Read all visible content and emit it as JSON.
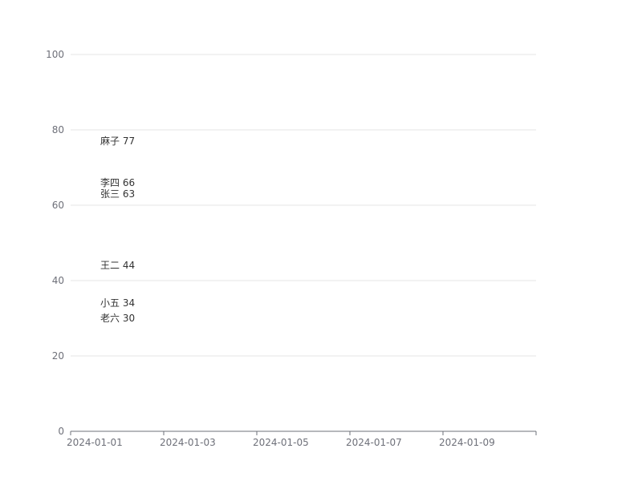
{
  "chart_data": {
    "type": "line",
    "title": "",
    "xlabel": "",
    "ylabel": "",
    "x_type": "date",
    "xlim": [
      "2024-01-01",
      "2024-01-11"
    ],
    "ylim": [
      0,
      100
    ],
    "x_ticks": [
      "2024-01-01",
      "2024-01-03",
      "2024-01-05",
      "2024-01-07",
      "2024-01-09"
    ],
    "y_ticks": [
      0,
      20,
      40,
      60,
      80,
      100
    ],
    "grid": true,
    "legend": "none",
    "series": [
      {
        "name": "麻子",
        "points": [
          {
            "x": "2024-01-01",
            "y": 77
          }
        ],
        "label": "麻子 77"
      },
      {
        "name": "李四",
        "points": [
          {
            "x": "2024-01-01",
            "y": 66
          }
        ],
        "label": "李四 66"
      },
      {
        "name": "张三",
        "points": [
          {
            "x": "2024-01-01",
            "y": 63
          }
        ],
        "label": "张三 63"
      },
      {
        "name": "王二",
        "points": [
          {
            "x": "2024-01-01",
            "y": 44
          }
        ],
        "label": "王二 44"
      },
      {
        "name": "小五",
        "points": [
          {
            "x": "2024-01-01",
            "y": 34
          }
        ],
        "label": "小五 34"
      },
      {
        "name": "老六",
        "points": [
          {
            "x": "2024-01-01",
            "y": 30
          }
        ],
        "label": "老六 30"
      }
    ],
    "colors": {
      "grid": "#e6e6e6",
      "axis": "#6e7079",
      "tick_text": "#6e7079",
      "label_text": "#333333"
    }
  }
}
